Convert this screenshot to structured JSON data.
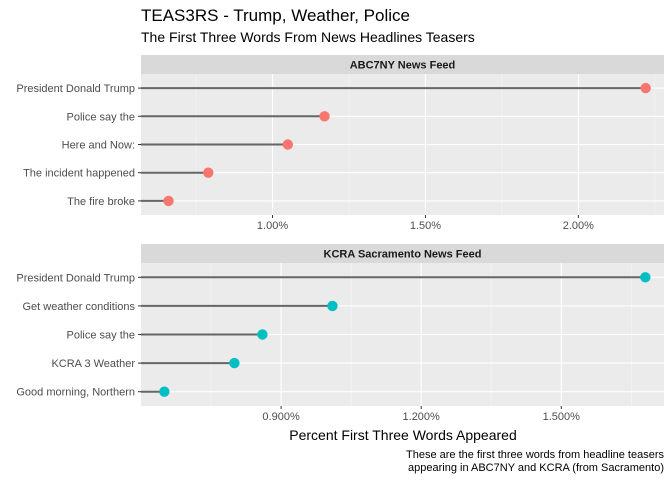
{
  "title": "TEAS3RS - Trump, Weather, Police",
  "subtitle": "The First Three Words From News Headlines Teasers",
  "xlabel": "Percent First Three Words Appeared",
  "caption_lines": [
    "These are the first three words from headline teasers",
    "appearing in ABC7NY and KCRA (from Sacramento)"
  ],
  "chart_data": [
    {
      "type": "lollipop",
      "panel": "ABC7NY News Feed",
      "color": "#F8766D",
      "xlim": [
        0.57,
        2.28
      ],
      "xticks": [
        1.0,
        1.5,
        2.0
      ],
      "xtick_labels": [
        "1.00%",
        "1.50%",
        "2.00%"
      ],
      "categories": [
        "President Donald Trump",
        "Police say the",
        "Here and Now:",
        "The incident happened",
        "The fire broke"
      ],
      "values": [
        2.22,
        1.17,
        1.05,
        0.79,
        0.66
      ]
    },
    {
      "type": "lollipop",
      "panel": "KCRA Sacramento News Feed",
      "color": "#00BFC4",
      "xlim": [
        0.6,
        1.72
      ],
      "xticks": [
        0.9,
        1.2,
        1.5
      ],
      "xtick_labels": [
        "0.900%",
        "1.200%",
        "1.500%"
      ],
      "categories": [
        "President Donald Trump",
        "Get weather conditions",
        "Police say the",
        "KCRA 3 Weather",
        "Good morning, Northern"
      ],
      "values": [
        1.68,
        1.01,
        0.86,
        0.8,
        0.65
      ]
    }
  ]
}
